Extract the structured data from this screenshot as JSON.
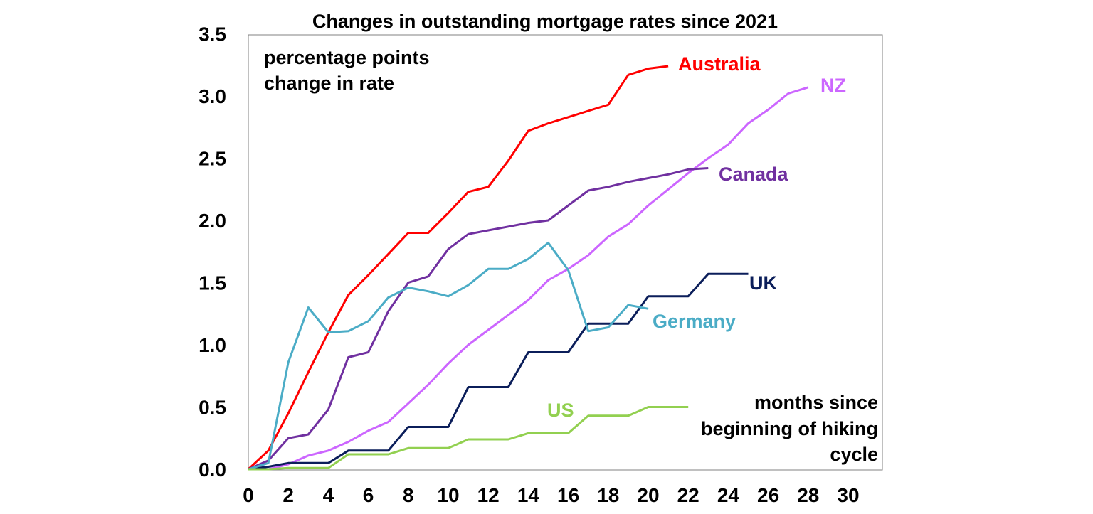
{
  "chart_data": {
    "type": "line",
    "title": "Changes in outstanding mortgage rates since 2021",
    "y_note": "percentage points change in rate",
    "y_note_lines": [
      "percentage points",
      "change in rate"
    ],
    "x_note": "months since beginning of hiking cycle",
    "x_note_lines": [
      "months since",
      "beginning of hiking",
      "cycle"
    ],
    "xlim": [
      0,
      30
    ],
    "ylim": [
      0,
      3.5
    ],
    "x_ticks": [
      "0",
      "2",
      "4",
      "6",
      "8",
      "10",
      "12",
      "14",
      "16",
      "18",
      "20",
      "22",
      "24",
      "26",
      "28",
      "30"
    ],
    "y_ticks": [
      "0.0",
      "0.5",
      "1.0",
      "1.5",
      "2.0",
      "2.5",
      "3.0",
      "3.5"
    ],
    "grid": false,
    "legend": "direct labels",
    "series": [
      {
        "name": "Australia",
        "color": "#ff0000",
        "x": [
          0,
          1,
          2,
          3,
          4,
          5,
          6,
          7,
          8,
          9,
          10,
          11,
          12,
          13,
          14,
          15,
          16,
          17,
          18,
          19,
          20,
          21
        ],
        "values": [
          0.0,
          0.15,
          0.45,
          0.78,
          1.1,
          1.4,
          1.56,
          1.73,
          1.9,
          1.9,
          2.06,
          2.23,
          2.27,
          2.48,
          2.72,
          2.78,
          2.83,
          2.88,
          2.93,
          3.17,
          3.22,
          3.24
        ]
      },
      {
        "name": "NZ",
        "color": "#cc66ff",
        "x": [
          0,
          1,
          2,
          3,
          4,
          5,
          6,
          7,
          8,
          9,
          10,
          11,
          12,
          13,
          14,
          15,
          16,
          17,
          18,
          19,
          20,
          21,
          22,
          23,
          24,
          25,
          26,
          27,
          28
        ],
        "values": [
          0.0,
          0.0,
          0.04,
          0.11,
          0.15,
          0.22,
          0.31,
          0.38,
          0.53,
          0.68,
          0.85,
          1.0,
          1.12,
          1.24,
          1.36,
          1.52,
          1.61,
          1.72,
          1.87,
          1.97,
          2.12,
          2.25,
          2.38,
          2.5,
          2.61,
          2.78,
          2.89,
          3.02,
          3.07
        ]
      },
      {
        "name": "Canada",
        "color": "#7030a0",
        "x": [
          0,
          1,
          2,
          3,
          4,
          5,
          6,
          7,
          8,
          9,
          10,
          11,
          12,
          13,
          14,
          15,
          16,
          17,
          18,
          19,
          20,
          21,
          22,
          23
        ],
        "values": [
          0.0,
          0.07,
          0.25,
          0.28,
          0.48,
          0.9,
          0.94,
          1.27,
          1.5,
          1.55,
          1.77,
          1.89,
          1.92,
          1.95,
          1.98,
          2.0,
          2.12,
          2.24,
          2.27,
          2.31,
          2.34,
          2.37,
          2.41,
          2.42
        ]
      },
      {
        "name": "UK",
        "color": "#0b1e5a",
        "x": [
          0,
          1,
          2,
          3,
          4,
          5,
          6,
          7,
          8,
          9,
          10,
          11,
          12,
          13,
          14,
          15,
          16,
          17,
          18,
          19,
          20,
          21,
          22,
          23,
          24,
          25
        ],
        "values": [
          0.0,
          0.02,
          0.05,
          0.05,
          0.05,
          0.15,
          0.15,
          0.15,
          0.34,
          0.34,
          0.34,
          0.66,
          0.66,
          0.66,
          0.94,
          0.94,
          0.94,
          1.17,
          1.17,
          1.17,
          1.39,
          1.39,
          1.39,
          1.57,
          1.57,
          1.57
        ]
      },
      {
        "name": "Germany",
        "color": "#4bacc6",
        "x": [
          0,
          1,
          2,
          3,
          4,
          5,
          6,
          7,
          8,
          9,
          10,
          11,
          12,
          13,
          14,
          15,
          16,
          17,
          18,
          19,
          20
        ],
        "values": [
          0.0,
          0.05,
          0.86,
          1.3,
          1.1,
          1.11,
          1.19,
          1.38,
          1.46,
          1.43,
          1.39,
          1.48,
          1.61,
          1.61,
          1.69,
          1.82,
          1.6,
          1.11,
          1.14,
          1.32,
          1.29
        ]
      },
      {
        "name": "US",
        "color": "#92d050",
        "x": [
          0,
          1,
          2,
          3,
          4,
          5,
          6,
          7,
          8,
          9,
          10,
          11,
          12,
          13,
          14,
          15,
          16,
          17,
          18,
          19,
          20,
          21,
          22
        ],
        "values": [
          0.0,
          0.0,
          0.01,
          0.01,
          0.01,
          0.12,
          0.12,
          0.12,
          0.17,
          0.17,
          0.17,
          0.24,
          0.24,
          0.24,
          0.29,
          0.29,
          0.29,
          0.43,
          0.43,
          0.43,
          0.5,
          0.5,
          0.5
        ]
      }
    ]
  }
}
